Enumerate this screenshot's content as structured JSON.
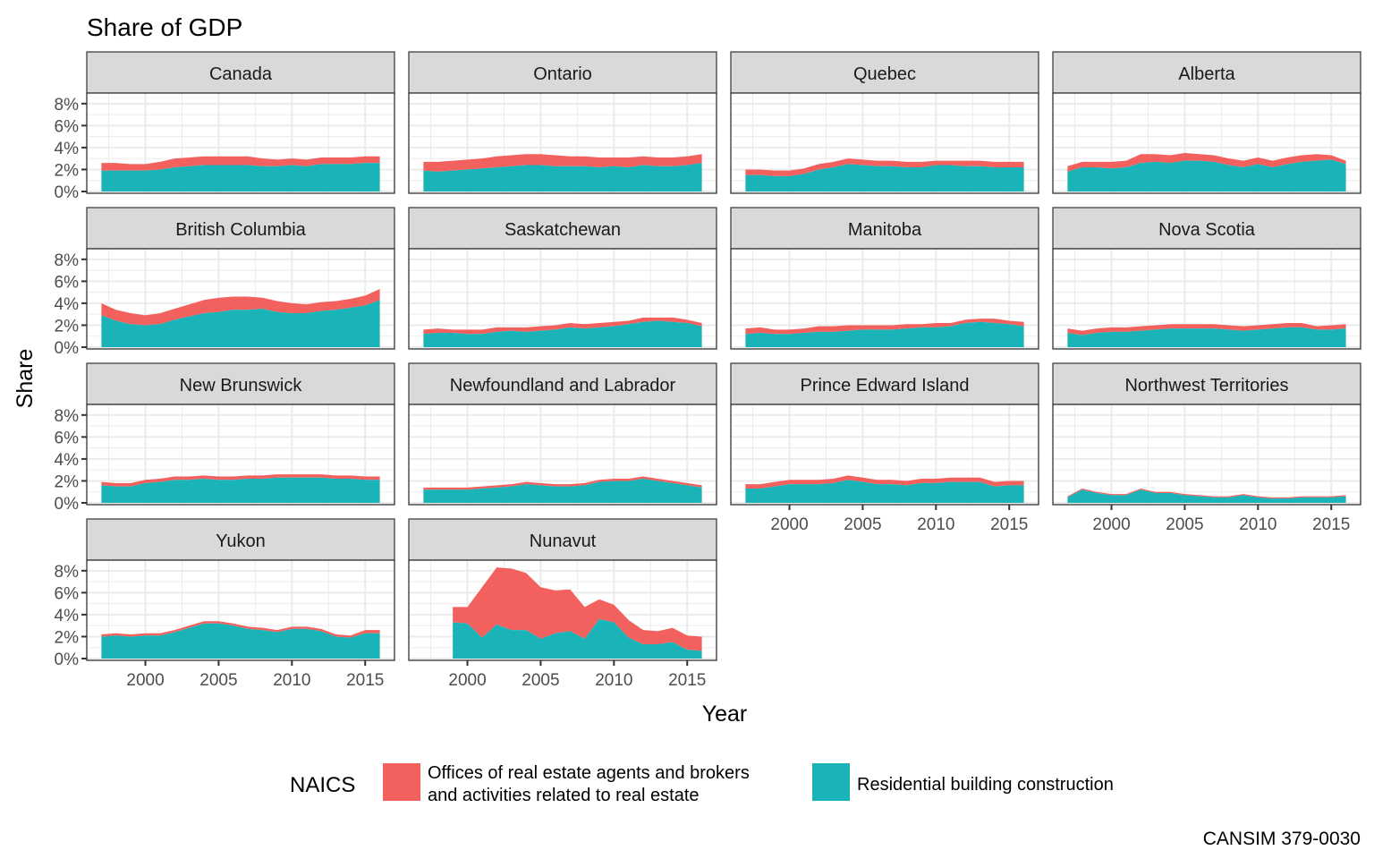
{
  "chart_data": {
    "type": "area",
    "stacked": true,
    "title": "Share of GDP",
    "xlabel": "Year",
    "ylabel": "Share",
    "caption": "CANSIM 379-0030",
    "ylim": [
      0,
      8.8
    ],
    "xlim": [
      1996.0,
      2017.0
    ],
    "y_ticks": [
      0,
      2,
      4,
      6,
      8
    ],
    "y_tick_labels": [
      "0%",
      "2%",
      "4%",
      "6%",
      "8%"
    ],
    "x_ticks": [
      2000,
      2005,
      2010,
      2015
    ],
    "x_tick_labels": [
      "2000",
      "2005",
      "2010",
      "2015"
    ],
    "grid": true,
    "legend": {
      "title": "NAICS",
      "position": "bottom",
      "entries": [
        {
          "key": "real_estate",
          "label_line1": "Offices of real estate agents and brokers",
          "label_line2": "and activities related to real estate",
          "color": "#F8766D"
        },
        {
          "key": "residential",
          "label_line1": "Residential building construction",
          "label_line2": "",
          "color": "#00BFC4"
        }
      ]
    },
    "series_colors": {
      "real_estate": "#F2615E",
      "residential": "#1AB4B8"
    },
    "facets": [
      {
        "name": "Canada",
        "start_year": 1997,
        "residential": [
          1.9,
          1.9,
          1.9,
          1.9,
          2.0,
          2.2,
          2.3,
          2.4,
          2.4,
          2.4,
          2.4,
          2.3,
          2.3,
          2.4,
          2.3,
          2.5,
          2.5,
          2.5,
          2.6,
          2.6
        ],
        "real_estate": [
          0.7,
          0.7,
          0.6,
          0.6,
          0.7,
          0.8,
          0.8,
          0.8,
          0.8,
          0.8,
          0.8,
          0.7,
          0.6,
          0.6,
          0.6,
          0.6,
          0.6,
          0.6,
          0.6,
          0.6
        ]
      },
      {
        "name": "Ontario",
        "start_year": 1997,
        "residential": [
          1.9,
          1.8,
          1.9,
          2.0,
          2.1,
          2.2,
          2.3,
          2.4,
          2.4,
          2.3,
          2.3,
          2.3,
          2.2,
          2.3,
          2.2,
          2.4,
          2.3,
          2.3,
          2.4,
          2.6
        ],
        "real_estate": [
          0.8,
          0.9,
          0.9,
          0.9,
          0.9,
          1.0,
          1.0,
          1.0,
          1.0,
          1.0,
          0.9,
          0.9,
          0.9,
          0.8,
          0.9,
          0.8,
          0.8,
          0.8,
          0.8,
          0.8
        ]
      },
      {
        "name": "Quebec",
        "start_year": 1997,
        "residential": [
          1.5,
          1.5,
          1.4,
          1.4,
          1.6,
          2.0,
          2.2,
          2.5,
          2.4,
          2.3,
          2.3,
          2.2,
          2.2,
          2.4,
          2.4,
          2.3,
          2.3,
          2.2,
          2.2,
          2.2
        ],
        "real_estate": [
          0.5,
          0.5,
          0.5,
          0.5,
          0.5,
          0.5,
          0.5,
          0.5,
          0.5,
          0.5,
          0.5,
          0.5,
          0.5,
          0.4,
          0.4,
          0.5,
          0.5,
          0.5,
          0.5,
          0.5
        ]
      },
      {
        "name": "Alberta",
        "start_year": 1997,
        "residential": [
          1.8,
          2.2,
          2.2,
          2.1,
          2.2,
          2.6,
          2.7,
          2.6,
          2.8,
          2.8,
          2.7,
          2.4,
          2.2,
          2.5,
          2.2,
          2.5,
          2.7,
          2.8,
          2.9,
          2.5
        ],
        "real_estate": [
          0.5,
          0.5,
          0.5,
          0.6,
          0.6,
          0.8,
          0.7,
          0.7,
          0.7,
          0.6,
          0.6,
          0.6,
          0.6,
          0.6,
          0.6,
          0.6,
          0.6,
          0.6,
          0.4,
          0.3
        ]
      },
      {
        "name": "British Columbia",
        "start_year": 1997,
        "residential": [
          2.9,
          2.4,
          2.1,
          2.0,
          2.1,
          2.5,
          2.8,
          3.1,
          3.2,
          3.4,
          3.4,
          3.5,
          3.2,
          3.1,
          3.1,
          3.3,
          3.4,
          3.6,
          3.8,
          4.3
        ],
        "real_estate": [
          1.1,
          1.0,
          1.0,
          0.9,
          1.0,
          1.0,
          1.1,
          1.2,
          1.3,
          1.2,
          1.2,
          1.0,
          1.0,
          0.9,
          0.8,
          0.8,
          0.8,
          0.8,
          0.9,
          1.0
        ]
      },
      {
        "name": "Saskatchewan",
        "start_year": 1997,
        "residential": [
          1.2,
          1.3,
          1.3,
          1.2,
          1.2,
          1.4,
          1.5,
          1.4,
          1.5,
          1.6,
          1.8,
          1.7,
          1.8,
          1.9,
          2.1,
          2.3,
          2.4,
          2.3,
          2.2,
          1.9
        ],
        "real_estate": [
          0.4,
          0.4,
          0.3,
          0.4,
          0.4,
          0.4,
          0.3,
          0.4,
          0.4,
          0.4,
          0.4,
          0.4,
          0.4,
          0.4,
          0.3,
          0.4,
          0.3,
          0.4,
          0.3,
          0.3
        ]
      },
      {
        "name": "Manitoba",
        "start_year": 1997,
        "residential": [
          1.2,
          1.3,
          1.2,
          1.2,
          1.3,
          1.4,
          1.4,
          1.5,
          1.6,
          1.6,
          1.6,
          1.7,
          1.8,
          1.8,
          1.9,
          2.2,
          2.3,
          2.2,
          2.1,
          1.9
        ],
        "real_estate": [
          0.5,
          0.5,
          0.4,
          0.4,
          0.4,
          0.5,
          0.5,
          0.5,
          0.4,
          0.4,
          0.4,
          0.4,
          0.3,
          0.4,
          0.3,
          0.3,
          0.3,
          0.4,
          0.3,
          0.4
        ]
      },
      {
        "name": "Nova Scotia",
        "start_year": 1997,
        "residential": [
          1.3,
          1.1,
          1.3,
          1.4,
          1.4,
          1.5,
          1.6,
          1.7,
          1.7,
          1.7,
          1.7,
          1.6,
          1.5,
          1.6,
          1.7,
          1.8,
          1.8,
          1.6,
          1.6,
          1.7
        ],
        "real_estate": [
          0.4,
          0.4,
          0.4,
          0.4,
          0.4,
          0.4,
          0.4,
          0.4,
          0.4,
          0.4,
          0.4,
          0.4,
          0.4,
          0.4,
          0.4,
          0.4,
          0.4,
          0.3,
          0.4,
          0.4
        ]
      },
      {
        "name": "New Brunswick",
        "start_year": 1997,
        "residential": [
          1.6,
          1.5,
          1.5,
          1.8,
          1.9,
          2.1,
          2.1,
          2.2,
          2.1,
          2.1,
          2.2,
          2.2,
          2.3,
          2.3,
          2.3,
          2.3,
          2.2,
          2.2,
          2.1,
          2.1
        ],
        "real_estate": [
          0.3,
          0.3,
          0.3,
          0.3,
          0.3,
          0.3,
          0.3,
          0.3,
          0.3,
          0.3,
          0.3,
          0.3,
          0.3,
          0.3,
          0.3,
          0.3,
          0.3,
          0.3,
          0.3,
          0.3
        ]
      },
      {
        "name": "Newfoundland and Labrador",
        "start_year": 1997,
        "residential": [
          1.2,
          1.2,
          1.2,
          1.2,
          1.3,
          1.4,
          1.5,
          1.7,
          1.6,
          1.5,
          1.5,
          1.6,
          1.9,
          2.0,
          2.0,
          2.2,
          2.0,
          1.8,
          1.6,
          1.4
        ],
        "real_estate": [
          0.2,
          0.2,
          0.2,
          0.2,
          0.2,
          0.2,
          0.2,
          0.2,
          0.2,
          0.2,
          0.2,
          0.2,
          0.2,
          0.2,
          0.2,
          0.2,
          0.2,
          0.2,
          0.2,
          0.2
        ]
      },
      {
        "name": "Prince Edward Island",
        "start_year": 1997,
        "residential": [
          1.3,
          1.3,
          1.5,
          1.7,
          1.7,
          1.7,
          1.8,
          2.1,
          1.9,
          1.7,
          1.7,
          1.6,
          1.8,
          1.8,
          1.9,
          1.9,
          1.9,
          1.5,
          1.6,
          1.6
        ],
        "real_estate": [
          0.4,
          0.4,
          0.4,
          0.4,
          0.4,
          0.4,
          0.4,
          0.4,
          0.4,
          0.4,
          0.4,
          0.4,
          0.4,
          0.4,
          0.4,
          0.4,
          0.4,
          0.4,
          0.4,
          0.4
        ]
      },
      {
        "name": "Northwest Territories",
        "start_year": 1997,
        "residential": [
          0.5,
          1.2,
          0.9,
          0.7,
          0.7,
          1.2,
          0.9,
          0.9,
          0.7,
          0.6,
          0.5,
          0.5,
          0.7,
          0.5,
          0.4,
          0.4,
          0.5,
          0.5,
          0.5,
          0.6
        ],
        "real_estate": [
          0.1,
          0.1,
          0.1,
          0.1,
          0.1,
          0.1,
          0.1,
          0.1,
          0.1,
          0.1,
          0.1,
          0.1,
          0.1,
          0.1,
          0.1,
          0.1,
          0.1,
          0.1,
          0.1,
          0.1
        ]
      },
      {
        "name": "Yukon",
        "start_year": 1997,
        "residential": [
          2.0,
          2.1,
          2.0,
          2.1,
          2.1,
          2.4,
          2.8,
          3.2,
          3.2,
          3.0,
          2.7,
          2.6,
          2.4,
          2.7,
          2.7,
          2.5,
          2.0,
          1.9,
          2.3,
          2.3
        ],
        "real_estate": [
          0.2,
          0.2,
          0.2,
          0.2,
          0.2,
          0.2,
          0.2,
          0.2,
          0.2,
          0.2,
          0.2,
          0.2,
          0.2,
          0.2,
          0.2,
          0.2,
          0.2,
          0.2,
          0.3,
          0.3
        ]
      },
      {
        "name": "Nunavut",
        "start_year": 1999,
        "residential": [
          3.3,
          3.2,
          1.9,
          3.1,
          2.6,
          2.6,
          1.8,
          2.3,
          2.5,
          1.8,
          3.6,
          3.3,
          1.9,
          1.3,
          1.3,
          1.5,
          0.8,
          0.7
        ],
        "real_estate": [
          1.4,
          1.5,
          4.6,
          5.2,
          5.6,
          5.2,
          4.7,
          3.9,
          3.8,
          2.9,
          1.8,
          1.6,
          1.6,
          1.3,
          1.2,
          1.3,
          1.3,
          1.3
        ]
      }
    ]
  }
}
